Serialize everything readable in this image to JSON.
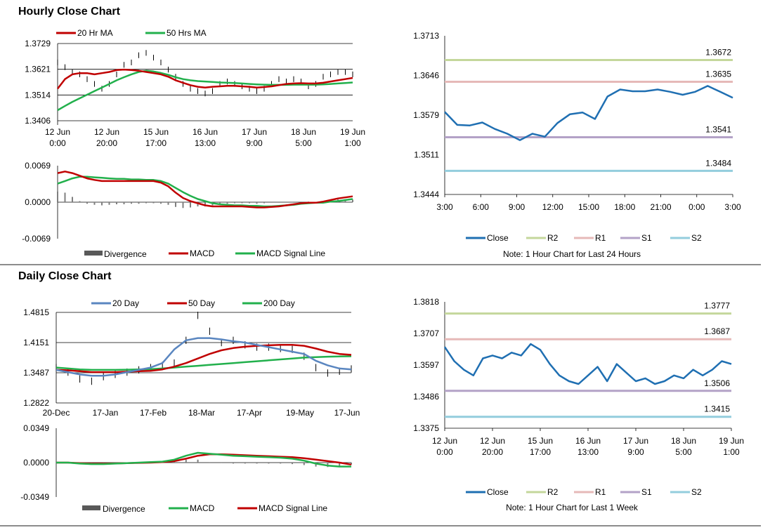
{
  "sections": {
    "hourly_title": "Hourly Close Chart",
    "daily_title": "Daily Close Chart"
  },
  "colors": {
    "ma_short": "#c00000",
    "ma_long": "#22b04c",
    "ma_200": "#22b04c",
    "ma_20day": "#5a86c0",
    "close": "#1f6fb2",
    "r2": "#c4d79b",
    "r1": "#e6b9b8",
    "s1": "#b3a2c7",
    "s2": "#93cddd",
    "divergence": "#7f7f7f",
    "grid": "#000000"
  },
  "chart_data": [
    {
      "id": "hourly_price",
      "type": "line",
      "title": "",
      "legend": [
        "20 Hr MA",
        "50 Hrs MA"
      ],
      "y_ticks": [
        "1.3729",
        "1.3621",
        "1.3514",
        "1.3406"
      ],
      "ylim": [
        1.3406,
        1.3729
      ],
      "x_ticks": [
        [
          "12 Jun",
          "0:00"
        ],
        [
          "12 Jun",
          "20:00"
        ],
        [
          "15 Jun",
          "17:00"
        ],
        [
          "16 Jun",
          "13:00"
        ],
        [
          "17 Jun",
          "9:00"
        ],
        [
          "18 Jun",
          "5:00"
        ],
        [
          "19 Jun",
          "1:00"
        ]
      ],
      "series": [
        {
          "name": "Close",
          "values": [
            1.365,
            1.363,
            1.361,
            1.36,
            1.358,
            1.356,
            1.354,
            1.356,
            1.36,
            1.364,
            1.365,
            1.368,
            1.369,
            1.367,
            1.365,
            1.362,
            1.359,
            1.356,
            1.354,
            1.353,
            1.352,
            1.353,
            1.356,
            1.357,
            1.356,
            1.355,
            1.354,
            1.353,
            1.354,
            1.356,
            1.358,
            1.357,
            1.358,
            1.357,
            1.355,
            1.356,
            1.359,
            1.36,
            1.361,
            1.361,
            1.36
          ]
        },
        {
          "name": "20 Hr MA",
          "values": [
            1.354,
            1.358,
            1.36,
            1.3605,
            1.3605,
            1.36,
            1.3605,
            1.361,
            1.3618,
            1.362,
            1.3618,
            1.3615,
            1.361,
            1.3605,
            1.36,
            1.359,
            1.3575,
            1.3565,
            1.3555,
            1.3548,
            1.3545,
            1.3548,
            1.355,
            1.3552,
            1.3552,
            1.355,
            1.3548,
            1.3545,
            1.3547,
            1.355,
            1.3555,
            1.356,
            1.3562,
            1.3563,
            1.3562,
            1.3562,
            1.3565,
            1.357,
            1.3575,
            1.358,
            1.3585
          ]
        },
        {
          "name": "50 Hrs MA",
          "values": [
            1.345,
            1.3468,
            1.3485,
            1.35,
            1.3515,
            1.353,
            1.3545,
            1.356,
            1.3575,
            1.3588,
            1.36,
            1.361,
            1.3615,
            1.3612,
            1.3606,
            1.3598,
            1.3588,
            1.358,
            1.3575,
            1.3572,
            1.357,
            1.3568,
            1.3566,
            1.3565,
            1.3564,
            1.3562,
            1.356,
            1.3558,
            1.3557,
            1.3556,
            1.3556,
            1.3556,
            1.3557,
            1.3557,
            1.3557,
            1.3557,
            1.3558,
            1.356,
            1.3562,
            1.3564,
            1.3566
          ]
        }
      ]
    },
    {
      "id": "hourly_macd",
      "type": "line",
      "legend": [
        "Divergence",
        "MACD",
        "MACD Signal Line"
      ],
      "y_ticks": [
        "0.0069",
        "0.0000",
        "-0.0069"
      ],
      "ylim": [
        -0.0069,
        0.0069
      ],
      "series": [
        {
          "name": "MACD",
          "values": [
            0.0055,
            0.0058,
            0.0055,
            0.005,
            0.0045,
            0.0042,
            0.004,
            0.004,
            0.004,
            0.004,
            0.004,
            0.004,
            0.004,
            0.004,
            0.0037,
            0.003,
            0.0018,
            0.0008,
            0.0002,
            -0.0002,
            -0.0006,
            -0.0008,
            -0.0008,
            -0.0008,
            -0.0008,
            -0.0008,
            -0.0009,
            -0.001,
            -0.001,
            -0.0009,
            -0.0008,
            -0.0006,
            -0.0004,
            -0.0002,
            -0.0001,
            -0.0001,
            0.0001,
            0.0004,
            0.0007,
            0.0009,
            0.0011
          ]
        },
        {
          "name": "MACD Signal Line",
          "values": [
            0.0035,
            0.004,
            0.0045,
            0.0048,
            0.0048,
            0.0047,
            0.0046,
            0.0045,
            0.0044,
            0.0044,
            0.0043,
            0.0043,
            0.0042,
            0.0042,
            0.004,
            0.0035,
            0.0027,
            0.0019,
            0.0012,
            0.0006,
            0.0002,
            -0.0002,
            -0.0004,
            -0.0005,
            -0.0006,
            -0.0006,
            -0.0007,
            -0.0007,
            -0.0008,
            -0.0008,
            -0.0007,
            -0.0006,
            -0.0005,
            -0.0003,
            -0.0002,
            -0.0001,
            -0.0001,
            0.0001,
            0.0002,
            0.0004,
            0.0006
          ]
        },
        {
          "name": "Divergence",
          "values": [
            0.002,
            0.0018,
            0.001,
            0.0002,
            -0.0003,
            -0.0005,
            -0.0006,
            -0.0005,
            -0.0004,
            -0.0004,
            -0.0003,
            -0.0003,
            -0.0002,
            -0.0002,
            -0.0003,
            -0.0005,
            -0.0009,
            -0.0011,
            -0.001,
            -0.0008,
            -0.0008,
            -0.0006,
            -0.0004,
            -0.0003,
            -0.0002,
            -0.0002,
            -0.0002,
            -0.0003,
            -0.0002,
            -0.0001,
            -0.0001,
            0.0,
            0.0001,
            0.0001,
            0.0001,
            0.0,
            0.0002,
            0.0003,
            0.0005,
            0.0005,
            0.0005
          ]
        }
      ]
    },
    {
      "id": "hourly_24h",
      "type": "line",
      "note": "Note: 1 Hour Chart for Last 24 Hours",
      "legend": [
        "Close",
        "R2",
        "R1",
        "S1",
        "S2"
      ],
      "y_ticks": [
        "1.3713",
        "1.3646",
        "1.3579",
        "1.3511",
        "1.3444"
      ],
      "ylim": [
        1.3444,
        1.3713
      ],
      "x_ticks": [
        "3:00",
        "6:00",
        "9:00",
        "12:00",
        "15:00",
        "18:00",
        "21:00",
        "0:00",
        "3:00"
      ],
      "levels": [
        {
          "name": "R2",
          "value": 1.3672,
          "label": "1.3672"
        },
        {
          "name": "R1",
          "value": 1.3635,
          "label": "1.3635"
        },
        {
          "name": "S1",
          "value": 1.3541,
          "label": "1.3541"
        },
        {
          "name": "S2",
          "value": 1.3484,
          "label": "1.3484"
        }
      ],
      "series": [
        {
          "name": "Close",
          "values": [
            1.3584,
            1.3562,
            1.3561,
            1.3566,
            1.3555,
            1.3547,
            1.3536,
            1.3547,
            1.3542,
            1.3565,
            1.358,
            1.3583,
            1.3572,
            1.361,
            1.3622,
            1.3619,
            1.3619,
            1.3622,
            1.3618,
            1.3613,
            1.3618,
            1.3628,
            1.3618,
            1.3608
          ]
        }
      ]
    },
    {
      "id": "daily_price",
      "type": "line",
      "legend": [
        "20 Day",
        "50 Day",
        "200 Day"
      ],
      "y_ticks": [
        "1.4815",
        "1.4151",
        "1.3487",
        "1.2822"
      ],
      "ylim": [
        1.2822,
        1.4815
      ],
      "x_ticks": [
        "20-Dec",
        "17-Jan",
        "17-Feb",
        "18-Mar",
        "17-Apr",
        "19-May",
        "17-Jun"
      ],
      "series": [
        {
          "name": "Close",
          "values": [
            1.36,
            1.35,
            1.335,
            1.33,
            1.34,
            1.345,
            1.35,
            1.355,
            1.36,
            1.365,
            1.37,
            1.42,
            1.475,
            1.44,
            1.415,
            1.42,
            1.41,
            1.405,
            1.405,
            1.402,
            1.4,
            1.385,
            1.36,
            1.348,
            1.352,
            1.357
          ]
        },
        {
          "name": "20 Day",
          "values": [
            1.355,
            1.35,
            1.345,
            1.342,
            1.342,
            1.345,
            1.35,
            1.355,
            1.36,
            1.37,
            1.4,
            1.42,
            1.425,
            1.425,
            1.422,
            1.418,
            1.415,
            1.41,
            1.405,
            1.4,
            1.395,
            1.39,
            1.375,
            1.365,
            1.358,
            1.356
          ]
        },
        {
          "name": "50 Day",
          "values": [
            1.355,
            1.354,
            1.352,
            1.35,
            1.35,
            1.35,
            1.351,
            1.352,
            1.353,
            1.356,
            1.362,
            1.37,
            1.38,
            1.39,
            1.398,
            1.403,
            1.406,
            1.408,
            1.409,
            1.41,
            1.41,
            1.408,
            1.402,
            1.395,
            1.39,
            1.388
          ]
        },
        {
          "name": "200 Day",
          "values": [
            1.36,
            1.358,
            1.356,
            1.355,
            1.355,
            1.355,
            1.3555,
            1.356,
            1.3565,
            1.358,
            1.36,
            1.362,
            1.364,
            1.366,
            1.368,
            1.37,
            1.372,
            1.374,
            1.376,
            1.378,
            1.38,
            1.382,
            1.383,
            1.384,
            1.3845,
            1.385
          ]
        }
      ]
    },
    {
      "id": "daily_macd",
      "type": "line",
      "legend": [
        "Divergence",
        "MACD",
        "MACD Signal Line"
      ],
      "y_ticks": [
        "0.0349",
        "0.0000",
        "-0.0349"
      ],
      "ylim": [
        -0.0349,
        0.0349
      ],
      "series": [
        {
          "name": "MACD",
          "values": [
            0.0,
            0.0,
            -0.001,
            -0.0015,
            -0.0015,
            -0.001,
            -0.0005,
            0.0,
            0.0005,
            0.001,
            0.003,
            0.007,
            0.01,
            0.009,
            0.008,
            0.007,
            0.0065,
            0.006,
            0.0055,
            0.005,
            0.004,
            0.002,
            -0.001,
            -0.003,
            -0.004,
            -0.004
          ]
        },
        {
          "name": "MACD Signal Line",
          "values": [
            0.0,
            0.0,
            -0.0005,
            -0.001,
            -0.001,
            -0.0008,
            -0.0005,
            -0.0003,
            0.0,
            0.0005,
            0.0015,
            0.004,
            0.007,
            0.0085,
            0.0085,
            0.008,
            0.0075,
            0.007,
            0.0065,
            0.006,
            0.0055,
            0.0045,
            0.003,
            0.0015,
            0.0,
            -0.002
          ]
        },
        {
          "name": "Divergence",
          "values": [
            0.0,
            0.0,
            -0.0005,
            -0.0005,
            -0.0005,
            -0.0002,
            0.0,
            0.0003,
            0.0005,
            0.0005,
            0.0015,
            0.003,
            0.003,
            0.0005,
            -0.0005,
            -0.001,
            -0.001,
            -0.001,
            -0.001,
            -0.001,
            -0.0015,
            -0.0025,
            -0.004,
            -0.0045,
            -0.004,
            -0.002
          ]
        }
      ]
    },
    {
      "id": "daily_week",
      "type": "line",
      "note": "Note: 1 Hour Chart for  Last 1 Week",
      "legend": [
        "Close",
        "R2",
        "R1",
        "S1",
        "S2"
      ],
      "y_ticks": [
        "1.3818",
        "1.3707",
        "1.3597",
        "1.3486",
        "1.3375"
      ],
      "ylim": [
        1.3375,
        1.3818
      ],
      "x_ticks": [
        [
          "12 Jun",
          "0:00"
        ],
        [
          "12 Jun",
          "20:00"
        ],
        [
          "15 Jun",
          "17:00"
        ],
        [
          "16 Jun",
          "13:00"
        ],
        [
          "17 Jun",
          "9:00"
        ],
        [
          "18 Jun",
          "5:00"
        ],
        [
          "19 Jun",
          "1:00"
        ]
      ],
      "levels": [
        {
          "name": "R2",
          "value": 1.3777,
          "label": "1.3777"
        },
        {
          "name": "R1",
          "value": 1.3687,
          "label": "1.3687"
        },
        {
          "name": "S1",
          "value": 1.3506,
          "label": "1.3506"
        },
        {
          "name": "S2",
          "value": 1.3415,
          "label": "1.3415"
        }
      ],
      "series": [
        {
          "name": "Close",
          "values": [
            1.366,
            1.361,
            1.358,
            1.356,
            1.362,
            1.363,
            1.362,
            1.364,
            1.363,
            1.367,
            1.365,
            1.36,
            1.356,
            1.354,
            1.353,
            1.356,
            1.359,
            1.354,
            1.36,
            1.357,
            1.354,
            1.355,
            1.353,
            1.354,
            1.356,
            1.355,
            1.358,
            1.356,
            1.358,
            1.361,
            1.36
          ]
        }
      ]
    }
  ]
}
